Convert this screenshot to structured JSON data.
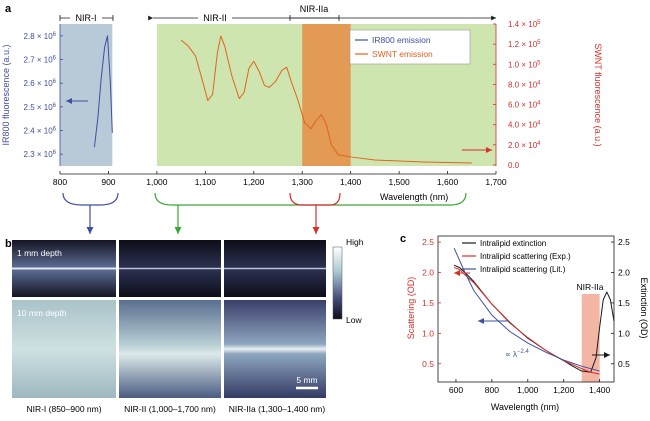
{
  "panel_labels": {
    "a": "a",
    "b": "b",
    "c": "c"
  },
  "colors": {
    "blue": "#3f4fa0",
    "red": "#d6302c",
    "green_arrow": "#3aa638",
    "nir1_band": "#b8c9d8",
    "nir2_band": "#cfe5b0",
    "nir2a_band": "#e29a55",
    "c_band": "#f2a994",
    "black": "#1a1a1a"
  },
  "panel_a": {
    "regions": {
      "nir1": "NIR-I",
      "nir2": "NIR-II",
      "nir2a": "NIR-IIa"
    },
    "xlabel": "Wavelength (nm)",
    "left_ylabel": "IR800 fluorescence (a.u.)",
    "right_ylabel": "SWNT fluorescence (a.u.)",
    "legend": {
      "ir800": "IR800 emission",
      "swnt": "SWNT emission"
    }
  },
  "panel_b": {
    "colorbar_high": "High",
    "colorbar_low": "Low",
    "depth_1": "1 mm depth",
    "depth_10": "10 mm depth",
    "scalebar": "5 mm",
    "captions": [
      "NIR-I (850–900 nm)",
      "NIR-II (1,000–1,700 nm)",
      "NIR-IIa (1,300–1,400 nm)"
    ]
  },
  "panel_c": {
    "legend": {
      "ext": "Intralipid extinction",
      "exp": "Intralipid scattering (Exp.)",
      "lit": "Intralipid scattering (Lit.)"
    },
    "band_label": "NIR-IIa",
    "lambda_note": "∝ λ",
    "lambda_exp": "−2.4",
    "left_ylabel": "Scattering (OD)",
    "right_ylabel": "Extinction (OD)",
    "xlabel": "Wavelength (nm)"
  },
  "chart_data": [
    {
      "id": "a",
      "type": "line",
      "xlabel": "Wavelength (nm)",
      "ylabel_left": "IR800 fluorescence (a.u.)",
      "ylabel_right": "SWNT fluorescence (a.u.)",
      "xlim": [
        800,
        1700
      ],
      "ylim_left": [
        2250000.0,
        2850000.0
      ],
      "ylim_right": [
        -1000,
        140000
      ],
      "x_ticks": [
        800,
        900,
        1000,
        1100,
        1200,
        1300,
        1400,
        1500,
        1600,
        1700
      ],
      "x_tick_labels": [
        "800",
        "900",
        "1,000",
        "1,100",
        "1,200",
        "1,300",
        "1,400",
        "1,500",
        "1,600",
        "1,700"
      ],
      "y_left_ticks": [
        2300000.0,
        2400000.0,
        2500000.0,
        2600000.0,
        2700000.0,
        2800000.0
      ],
      "y_left_tick_labels": [
        {
          "m": "2.3 × 10",
          "e": "6"
        },
        {
          "m": "2.4 × 10",
          "e": "6"
        },
        {
          "m": "2.5 × 10",
          "e": "6"
        },
        {
          "m": "2.6 × 10",
          "e": "6"
        },
        {
          "m": "2.7 × 10",
          "e": "6"
        },
        {
          "m": "2.8 × 10",
          "e": "6"
        }
      ],
      "y_right_ticks": [
        0,
        20000,
        40000,
        60000,
        80000,
        100000,
        120000,
        140000
      ],
      "y_right_tick_labels": [
        {
          "m": "0.0",
          "e": ""
        },
        {
          "m": "2.0 × 10",
          "e": "4"
        },
        {
          "m": "4.0 × 10",
          "e": "4"
        },
        {
          "m": "6.0 × 10",
          "e": "4"
        },
        {
          "m": "8.0 × 10",
          "e": "4"
        },
        {
          "m": "1.0 × 10",
          "e": "5"
        },
        {
          "m": "1.2 × 10",
          "e": "5"
        },
        {
          "m": "1.4 × 10",
          "e": "5"
        }
      ],
      "bands": [
        {
          "label": "NIR-I",
          "from": 800,
          "to": 908
        },
        {
          "label": "NIR-II",
          "from": 1000,
          "to": 1700
        },
        {
          "label": "NIR-IIa",
          "from": 1300,
          "to": 1400
        }
      ],
      "series": [
        {
          "name": "IR800 emission",
          "axis": "left",
          "x": [
            871,
            878,
            885,
            892,
            898,
            904,
            908
          ],
          "y": [
            2330000.0,
            2450000.0,
            2620000.0,
            2750000.0,
            2800000.0,
            2600000.0,
            2390000.0
          ]
        },
        {
          "name": "SWNT emission",
          "axis": "right",
          "x": [
            1050,
            1065,
            1080,
            1095,
            1105,
            1115,
            1125,
            1132,
            1140,
            1155,
            1170,
            1180,
            1190,
            1200,
            1212,
            1222,
            1232,
            1245,
            1258,
            1268,
            1278,
            1290,
            1305,
            1318,
            1330,
            1340,
            1350,
            1360,
            1375,
            1400,
            1450,
            1500,
            1550,
            1600,
            1650
          ],
          "y": [
            124000,
            118000,
            108000,
            82000,
            64000,
            70000,
            112000,
            128000,
            118000,
            88000,
            66000,
            72000,
            96000,
            103000,
            92000,
            79000,
            77000,
            83000,
            94000,
            97000,
            82000,
            66000,
            42000,
            36000,
            45000,
            50000,
            40000,
            20000,
            10000,
            8000,
            5000,
            4000,
            3000,
            2500,
            2000
          ]
        }
      ]
    },
    {
      "id": "c",
      "type": "line",
      "xlabel": "Wavelength (nm)",
      "ylabel_left": "Scattering (OD)",
      "ylabel_right": "Extinction (OD)",
      "xlim": [
        500,
        1480
      ],
      "ylim_left": [
        0.2,
        2.6
      ],
      "ylim_right": [
        0.2,
        2.6
      ],
      "x_ticks": [
        600,
        800,
        1000,
        1200,
        1400
      ],
      "x_tick_labels": [
        "600",
        "800",
        "1,000",
        "1,200",
        "1,400"
      ],
      "y_left_ticks": [
        0.5,
        1.0,
        1.5,
        2.0,
        2.5
      ],
      "y_left_tick_labels": [
        "0.5",
        "1.0",
        "1.5",
        "2.0",
        "2.5"
      ],
      "y_right_ticks": [
        0.5,
        1.0,
        1.5,
        2.0,
        2.5
      ],
      "y_right_tick_labels": [
        "0.5",
        "1.0",
        "1.5",
        "2.0",
        "2.5"
      ],
      "band": {
        "label": "NIR-IIa",
        "from": 1300,
        "to": 1400
      },
      "series": [
        {
          "name": "Intralipid extinction",
          "axis": "right",
          "x": [
            590,
            620,
            650,
            700,
            800,
            900,
            1000,
            1100,
            1150,
            1200,
            1250,
            1300,
            1350,
            1380,
            1400,
            1420,
            1440,
            1460,
            1480
          ],
          "y": [
            2.12,
            2.08,
            2.0,
            1.85,
            1.48,
            1.18,
            0.92,
            0.72,
            0.63,
            0.55,
            0.46,
            0.38,
            0.36,
            0.6,
            1.1,
            1.55,
            1.68,
            1.55,
            1.2
          ]
        },
        {
          "name": "Intralipid scattering (Exp.)",
          "axis": "left",
          "x": [
            590,
            620,
            650,
            700,
            800,
            900,
            1000,
            1100,
            1200,
            1300,
            1350,
            1400
          ],
          "y": [
            2.08,
            2.05,
            1.96,
            1.83,
            1.48,
            1.17,
            0.93,
            0.72,
            0.55,
            0.42,
            0.36,
            0.33
          ]
        },
        {
          "name": "Intralipid scattering (Lit.)",
          "axis": "left",
          "x": [
            590,
            620,
            650,
            700,
            800,
            900,
            1000,
            1100,
            1200,
            1300,
            1400
          ],
          "y": [
            2.4,
            2.2,
            2.0,
            1.7,
            1.3,
            1.03,
            0.84,
            0.69,
            0.56,
            0.46,
            0.38
          ]
        }
      ]
    }
  ]
}
